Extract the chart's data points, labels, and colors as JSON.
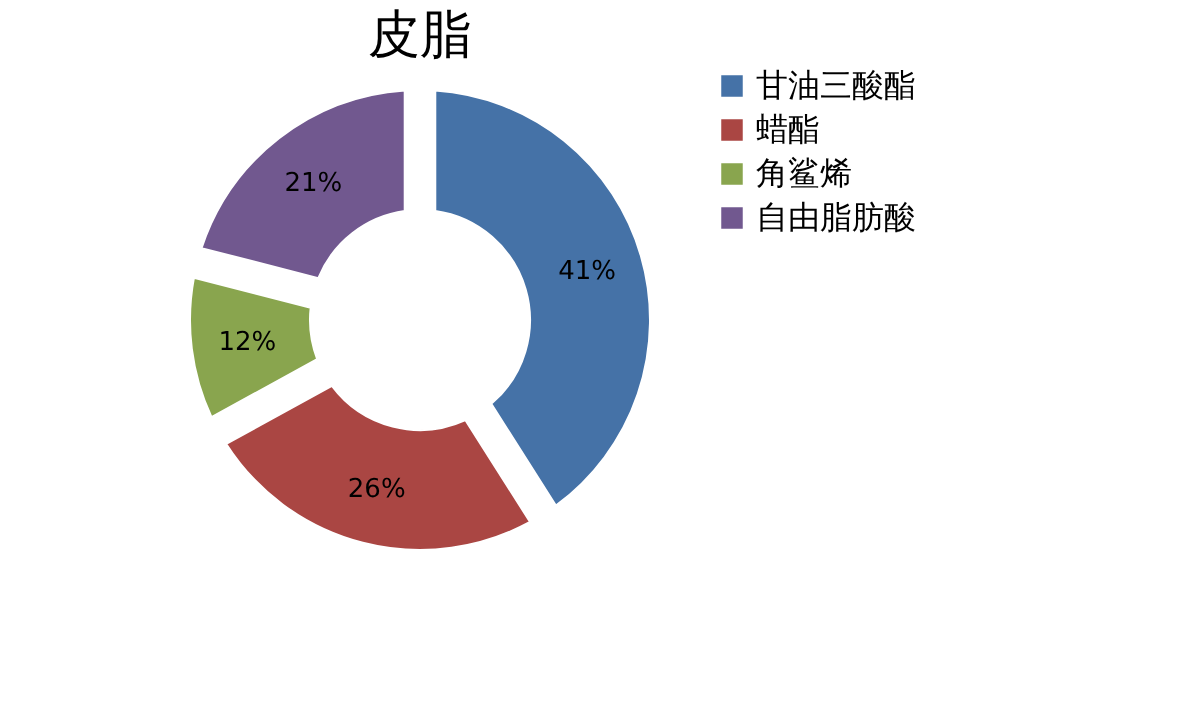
{
  "chart_data": {
    "type": "donut",
    "title": "皮脂",
    "categories": [
      "甘油三酸酯",
      "蜡酯",
      "角鲨烯",
      "自由脂肪酸"
    ],
    "values": [
      41,
      26,
      12,
      21
    ],
    "colors": [
      "#4572a7",
      "#aa4643",
      "#89a54e",
      "#71588f"
    ],
    "value_labels": [
      "41%",
      "26%",
      "12%",
      "21%"
    ],
    "legend": "right"
  }
}
